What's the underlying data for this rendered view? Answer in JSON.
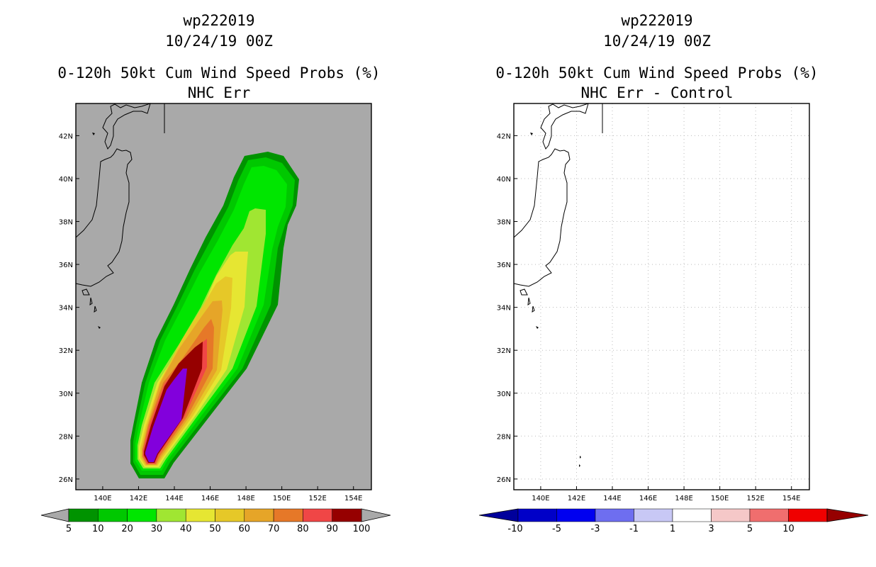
{
  "chart_data": [
    {
      "type": "heatmap",
      "title_lines": [
        "wp222019",
        "10/24/19 00Z",
        "0-120h 50kt Cum Wind Speed Probs (%)",
        "NHC Err"
      ],
      "x_ticks": [
        "140E",
        "142E",
        "144E",
        "146E",
        "148E",
        "150E",
        "152E",
        "154E"
      ],
      "y_ticks": [
        "26N",
        "28N",
        "30N",
        "32N",
        "34N",
        "36N",
        "38N",
        "40N",
        "42N"
      ],
      "xlim_deg_east": [
        138.5,
        155.0
      ],
      "ylim_deg_north": [
        25.5,
        43.5
      ],
      "background_color": "#a9a9a9",
      "colorbar": {
        "labels": [
          "5",
          "10",
          "20",
          "30",
          "40",
          "50",
          "60",
          "70",
          "80",
          "90",
          "100"
        ],
        "colors": [
          "#009300",
          "#00c800",
          "#00e600",
          "#a0e632",
          "#e6e632",
          "#e6c828",
          "#e6a528",
          "#e67828",
          "#f04646",
          "#960000",
          "#8200dc"
        ],
        "extend_color": "#a9a9a9"
      }
    },
    {
      "type": "heatmap",
      "title_lines": [
        "wp222019",
        "10/24/19 00Z",
        "0-120h 50kt Cum Wind Speed Probs (%)",
        "NHC Err - Control"
      ],
      "x_ticks": [
        "140E",
        "142E",
        "144E",
        "146E",
        "148E",
        "150E",
        "152E",
        "154E"
      ],
      "y_ticks": [
        "26N",
        "28N",
        "30N",
        "32N",
        "34N",
        "36N",
        "38N",
        "40N",
        "42N"
      ],
      "xlim_deg_east": [
        138.5,
        155.0
      ],
      "ylim_deg_north": [
        25.5,
        43.5
      ],
      "background_color": "#ffffff",
      "colorbar": {
        "labels": [
          "-10",
          "-5",
          "-3",
          "-1",
          "1",
          "3",
          "5",
          "10"
        ],
        "colors": [
          "#0000c8",
          "#0000f0",
          "#6e6ef0",
          "#c8c8f5",
          "#ffffff",
          "#f5c8c8",
          "#f06e6e",
          "#f00000",
          "#c80000"
        ],
        "low_extend_color": "#00009b",
        "high_extend_color": "#960000"
      }
    }
  ]
}
